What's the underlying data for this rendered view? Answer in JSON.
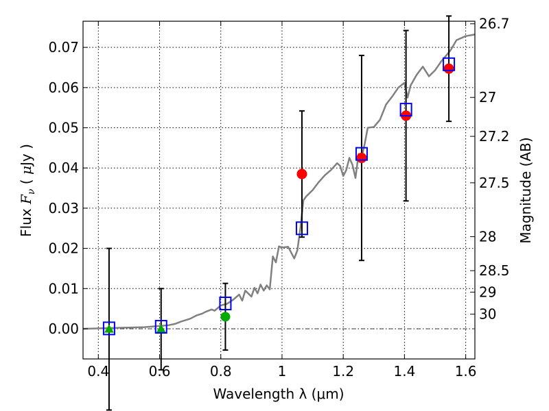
{
  "chart_data": {
    "type": "scatter",
    "title": "",
    "xlabel": "Wavelength  λ (μm)",
    "ylabel": "Flux  F_ν ( μJy )",
    "ylabel_parts": {
      "pre": "Flux  ",
      "F": "F",
      "nu": "ν",
      "mid": "  ( ",
      "mu": "μ",
      "post": "Jy )"
    },
    "y2label": "Magnitude (AB)",
    "xlim": [
      0.35,
      1.63
    ],
    "ylim": [
      -0.0075,
      0.0765
    ],
    "grid": true,
    "x_ticks": [
      {
        "value": 0.4,
        "label": "0.4"
      },
      {
        "value": 0.6,
        "label": "0.6"
      },
      {
        "value": 0.8,
        "label": "0.8"
      },
      {
        "value": 1.0,
        "label": "1"
      },
      {
        "value": 1.2,
        "label": "1.2"
      },
      {
        "value": 1.4,
        "label": "1.4"
      },
      {
        "value": 1.6,
        "label": "1.6"
      }
    ],
    "y_ticks": [
      {
        "value": 0.0,
        "label": "0.00"
      },
      {
        "value": 0.01,
        "label": "0.01"
      },
      {
        "value": 0.02,
        "label": "0.02"
      },
      {
        "value": 0.03,
        "label": "0.03"
      },
      {
        "value": 0.04,
        "label": "0.04"
      },
      {
        "value": 0.05,
        "label": "0.05"
      },
      {
        "value": 0.06,
        "label": "0.06"
      },
      {
        "value": 0.07,
        "label": "0.07"
      }
    ],
    "y2_ticks": [
      {
        "value": 26.7,
        "label": "26.7"
      },
      {
        "value": 27.0,
        "label": "27"
      },
      {
        "value": 27.2,
        "label": "27.2"
      },
      {
        "value": 27.5,
        "label": "27.5"
      },
      {
        "value": 28.0,
        "label": "28"
      },
      {
        "value": 28.5,
        "label": "28.5"
      },
      {
        "value": 29.0,
        "label": "29"
      },
      {
        "value": 30.0,
        "label": "30"
      }
    ],
    "model_spectrum": {
      "color": "#808080",
      "x": [
        0.35,
        0.45,
        0.55,
        0.6,
        0.63,
        0.65,
        0.67,
        0.7,
        0.72,
        0.74,
        0.75,
        0.77,
        0.78,
        0.8,
        0.82,
        0.84,
        0.86,
        0.87,
        0.88,
        0.9,
        0.91,
        0.92,
        0.93,
        0.94,
        0.95,
        0.96,
        0.97,
        0.98,
        0.99,
        1.0,
        1.02,
        1.04,
        1.05,
        1.06,
        1.07,
        1.08,
        1.1,
        1.12,
        1.14,
        1.16,
        1.18,
        1.19,
        1.2,
        1.21,
        1.22,
        1.23,
        1.24,
        1.25,
        1.26,
        1.27,
        1.28,
        1.3,
        1.32,
        1.34,
        1.36,
        1.38,
        1.4,
        1.41,
        1.42,
        1.44,
        1.46,
        1.48,
        1.5,
        1.52,
        1.55,
        1.57,
        1.6,
        1.63
      ],
      "y": [
        0.0,
        0.0002,
        0.0004,
        0.0007,
        0.0009,
        0.0012,
        0.0018,
        0.0025,
        0.0033,
        0.0038,
        0.0042,
        0.0048,
        0.0045,
        0.0058,
        0.0062,
        0.0072,
        0.0085,
        0.007,
        0.0095,
        0.008,
        0.0102,
        0.0088,
        0.011,
        0.0095,
        0.0108,
        0.0098,
        0.018,
        0.0165,
        0.0205,
        0.0202,
        0.0204,
        0.0175,
        0.0195,
        0.025,
        0.032,
        0.033,
        0.0345,
        0.0365,
        0.0382,
        0.0395,
        0.0412,
        0.0405,
        0.038,
        0.0395,
        0.0425,
        0.0408,
        0.0375,
        0.0435,
        0.0425,
        0.046,
        0.05,
        0.0502,
        0.052,
        0.0558,
        0.0578,
        0.06,
        0.0612,
        0.0575,
        0.0605,
        0.0632,
        0.0652,
        0.0628,
        0.0643,
        0.0665,
        0.0692,
        0.0718,
        0.0728,
        0.0732
      ]
    },
    "model_points": {
      "marker": "open-square",
      "color": "#0000ff",
      "x": [
        0.435,
        0.605,
        0.815,
        1.065,
        1.26,
        1.405,
        1.545
      ],
      "y": [
        0.0001,
        0.0005,
        0.0063,
        0.025,
        0.0435,
        0.0545,
        0.0658
      ]
    },
    "optical_points": {
      "marker": "triangle",
      "color": "#00aa00",
      "x": [
        0.435,
        0.605
      ],
      "y": [
        -0.0001,
        -0.0001
      ],
      "yerr": [
        0.0201,
        0.0101
      ]
    },
    "z_point": {
      "marker": "circle",
      "color": "#00aa00",
      "x": [
        0.815
      ],
      "y": [
        0.003
      ],
      "yerr": [
        0.0083
      ]
    },
    "nir_points": {
      "marker": "circle",
      "color": "#ff0000",
      "x": [
        1.065,
        1.26,
        1.405,
        1.545
      ],
      "y": [
        0.0385,
        0.0425,
        0.053,
        0.0647
      ],
      "yerr": [
        0.0157,
        0.0255,
        0.0212,
        0.0131
      ]
    },
    "zero_line": {
      "y": 0.0,
      "style": "dash-dot"
    }
  }
}
